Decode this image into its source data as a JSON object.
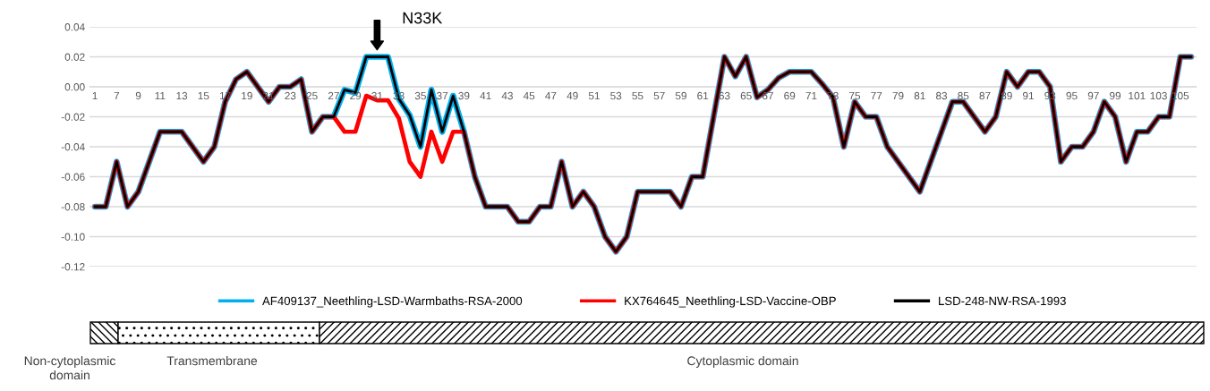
{
  "chart_data": {
    "type": "line",
    "categories": [
      "1",
      null,
      "7",
      null,
      "9",
      null,
      "11",
      null,
      "13",
      null,
      "15",
      null,
      "17",
      null,
      "19",
      null,
      "21",
      null,
      "23",
      null,
      "25",
      null,
      "27",
      null,
      "29",
      null,
      "31",
      null,
      "33",
      null,
      "35",
      null,
      "37",
      null,
      "39",
      null,
      "41",
      null,
      "43",
      null,
      "45",
      null,
      "47",
      null,
      "49",
      null,
      "51",
      null,
      "53",
      null,
      "55",
      null,
      "57",
      null,
      "59",
      null,
      "61",
      null,
      "63",
      null,
      "65",
      null,
      "67",
      null,
      "69",
      null,
      "71",
      null,
      "73",
      null,
      "75",
      null,
      "77",
      null,
      "79",
      null,
      "81",
      null,
      "83",
      null,
      "85",
      null,
      "87",
      null,
      "89",
      null,
      "91",
      null,
      "93",
      null,
      "95",
      null,
      "97",
      null,
      "99",
      null,
      "101",
      null,
      "103",
      null,
      "105",
      null
    ],
    "series": [
      {
        "name": "AF409137_Neethling-LSD-Warmbaths-RSA-2000",
        "color": "#00b0f0",
        "values": [
          -0.08,
          -0.08,
          -0.05,
          -0.08,
          -0.07,
          -0.05,
          -0.03,
          -0.03,
          -0.03,
          -0.04,
          -0.05,
          -0.04,
          -0.01,
          0.005,
          0.01,
          0.0,
          -0.01,
          0.0,
          0.0,
          0.005,
          -0.03,
          -0.02,
          -0.02,
          -0.002,
          -0.004,
          0.02,
          0.02,
          0.02,
          -0.008,
          -0.019,
          -0.04,
          -0.002,
          -0.03,
          -0.006,
          -0.03,
          -0.06,
          -0.08,
          -0.08,
          -0.08,
          -0.09,
          -0.09,
          -0.08,
          -0.08,
          -0.05,
          -0.08,
          -0.07,
          -0.08,
          -0.1,
          -0.11,
          -0.1,
          -0.07,
          -0.07,
          -0.07,
          -0.07,
          -0.08,
          -0.06,
          -0.06,
          -0.02,
          0.02,
          0.007,
          0.02,
          -0.007,
          -0.002,
          0.006,
          0.01,
          0.01,
          0.01,
          0.002,
          -0.007,
          -0.04,
          -0.01,
          -0.02,
          -0.02,
          -0.04,
          -0.05,
          -0.06,
          -0.07,
          -0.05,
          -0.03,
          -0.01,
          -0.01,
          -0.02,
          -0.03,
          -0.02,
          0.01,
          0.0,
          0.01,
          0.01,
          0.0,
          -0.05,
          -0.04,
          -0.04,
          -0.03,
          -0.01,
          -0.02,
          -0.05,
          -0.03,
          -0.03,
          -0.02,
          -0.02,
          0.02,
          0.02
        ]
      },
      {
        "name": "KX764645_Neethling-LSD-Vaccine-OBP",
        "color": "#ff0000",
        "values": [
          -0.08,
          -0.08,
          -0.05,
          -0.08,
          -0.07,
          -0.05,
          -0.03,
          -0.03,
          -0.03,
          -0.04,
          -0.05,
          -0.04,
          -0.01,
          0.005,
          0.01,
          0.0,
          -0.01,
          0.0,
          0.0,
          0.005,
          -0.03,
          -0.02,
          -0.02,
          -0.03,
          -0.03,
          -0.006,
          -0.009,
          -0.009,
          -0.021,
          -0.05,
          -0.06,
          -0.03,
          -0.05,
          -0.03,
          -0.03,
          -0.06,
          -0.08,
          -0.08,
          -0.08,
          -0.09,
          -0.09,
          -0.08,
          -0.08,
          -0.05,
          -0.08,
          -0.07,
          -0.08,
          -0.1,
          -0.11,
          -0.1,
          -0.07,
          -0.07,
          -0.07,
          -0.07,
          -0.08,
          -0.06,
          -0.06,
          -0.02,
          0.02,
          0.007,
          0.02,
          -0.007,
          -0.002,
          0.006,
          0.01,
          0.01,
          0.01,
          0.002,
          -0.007,
          -0.04,
          -0.01,
          -0.02,
          -0.02,
          -0.04,
          -0.05,
          -0.06,
          -0.07,
          -0.05,
          -0.03,
          -0.01,
          -0.01,
          -0.02,
          -0.03,
          -0.02,
          0.01,
          0.0,
          0.01,
          0.01,
          0.0,
          -0.05,
          -0.04,
          -0.04,
          -0.03,
          -0.01,
          -0.02,
          -0.05,
          -0.03,
          -0.03,
          -0.02,
          -0.02,
          0.02,
          0.02
        ]
      },
      {
        "name": "LSD-248-NW-RSA-1993",
        "color": "#000000",
        "values": [
          -0.08,
          -0.08,
          -0.05,
          -0.08,
          -0.07,
          -0.05,
          -0.03,
          -0.03,
          -0.03,
          -0.04,
          -0.05,
          -0.04,
          -0.01,
          0.005,
          0.01,
          0.0,
          -0.01,
          0.0,
          0.0,
          0.005,
          -0.03,
          -0.02,
          -0.02,
          -0.002,
          -0.004,
          0.02,
          0.02,
          0.02,
          -0.008,
          -0.019,
          -0.04,
          -0.002,
          -0.03,
          -0.006,
          -0.03,
          -0.06,
          -0.08,
          -0.08,
          -0.08,
          -0.09,
          -0.09,
          -0.08,
          -0.08,
          -0.05,
          -0.08,
          -0.07,
          -0.08,
          -0.1,
          -0.11,
          -0.1,
          -0.07,
          -0.07,
          -0.07,
          -0.07,
          -0.08,
          -0.06,
          -0.06,
          -0.02,
          0.02,
          0.007,
          0.02,
          -0.007,
          -0.002,
          0.006,
          0.01,
          0.01,
          0.01,
          0.002,
          -0.007,
          -0.04,
          -0.01,
          -0.02,
          -0.02,
          -0.04,
          -0.05,
          -0.06,
          -0.07,
          -0.05,
          -0.03,
          -0.01,
          -0.01,
          -0.02,
          -0.03,
          -0.02,
          0.01,
          0.0,
          0.01,
          0.01,
          0.0,
          -0.05,
          -0.04,
          -0.04,
          -0.03,
          -0.01,
          -0.02,
          -0.05,
          -0.03,
          -0.03,
          -0.02,
          -0.02,
          0.02,
          0.02
        ]
      }
    ],
    "ylim": [
      -0.12,
      0.04
    ],
    "yticks": [
      {
        "value": -0.12,
        "label": "-0.12"
      },
      {
        "value": -0.1,
        "label": "-0.10"
      },
      {
        "value": -0.08,
        "label": "-0.08"
      },
      {
        "value": -0.06,
        "label": "-0.06"
      },
      {
        "value": -0.04,
        "label": "-0.04"
      },
      {
        "value": -0.02,
        "label": "-0.02"
      },
      {
        "value": 0,
        "label": "0.00"
      },
      {
        "value": 0.02,
        "label": "0.02"
      },
      {
        "value": 0.04,
        "label": "0.04"
      }
    ],
    "grid": "y",
    "legend": "bottom",
    "marker": "none",
    "line_style": "solid",
    "annotations": [
      {
        "text": "N33K",
        "x": "31",
        "y": 0.02
      },
      "Non-cytoplasmic domain",
      "Transmembrane",
      "Cytoplasmic domain"
    ]
  }
}
